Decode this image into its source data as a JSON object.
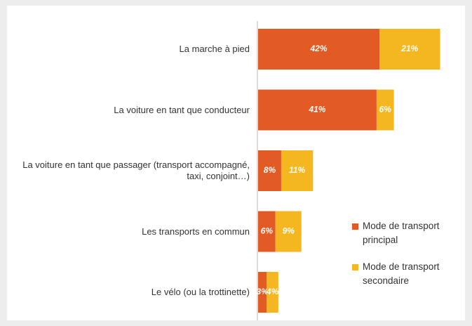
{
  "chart_data": {
    "type": "stacked-bar-horizontal",
    "categories": [
      "La marche à pied",
      "La voiture en tant que conducteur",
      "La voiture en tant que passager (transport accompagné, taxi, conjoint…)",
      "Les transports en commun",
      "Le vélo (ou la trottinette)"
    ],
    "series": [
      {
        "name": "Mode de transport principal",
        "color": "#e35b24",
        "values": [
          42,
          41,
          8,
          6,
          3
        ],
        "value_labels": [
          "42%",
          "41%",
          "8%",
          "6%",
          "3%"
        ]
      },
      {
        "name": "Mode de transport secondaire",
        "color": "#f5b71f",
        "values": [
          21,
          6,
          11,
          9,
          4
        ],
        "value_labels": [
          "21%",
          "6%",
          "11%",
          "9%",
          "4%"
        ]
      }
    ],
    "legend": "right"
  }
}
